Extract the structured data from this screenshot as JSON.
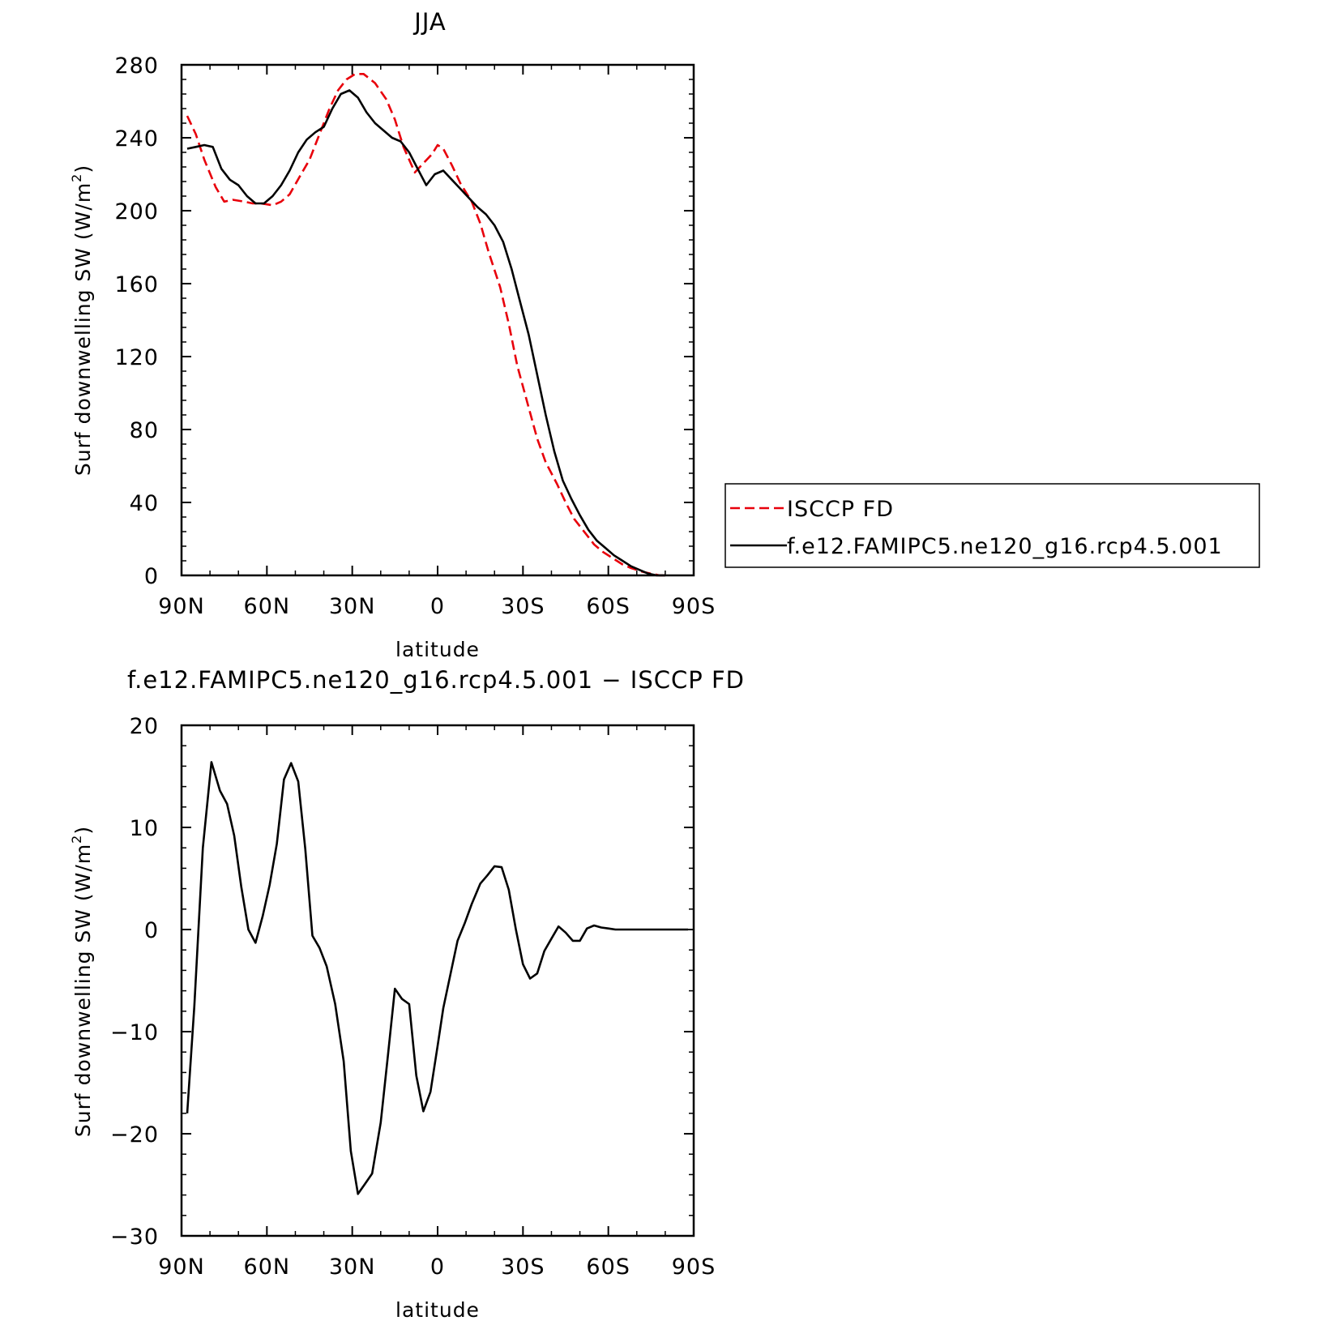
{
  "chart_data": [
    {
      "type": "line",
      "title": "JJA",
      "xlabel": "latitude",
      "ylabel": "Surf downwelling SW (W/m²)",
      "ylabel_main": "Surf downwelling SW (W/m",
      "ylabel_sup": "2",
      "ylabel_close": ")",
      "xlim": [
        90,
        -90
      ],
      "ylim": [
        0,
        280
      ],
      "x_tick_values": [
        90,
        60,
        30,
        0,
        -30,
        -60,
        -90
      ],
      "x_tick_labels": [
        "90N",
        "60N",
        "30N",
        "0",
        "30S",
        "60S",
        "90S"
      ],
      "y_tick_values": [
        0,
        40,
        80,
        120,
        160,
        200,
        240,
        280
      ],
      "y_tick_labels": [
        "0",
        "40",
        "80",
        "120",
        "160",
        "200",
        "240",
        "280"
      ],
      "grid": false,
      "legend": "outside-right",
      "series": [
        {
          "name": "ISCCP FD",
          "color": "#e8000b",
          "style": "dashed",
          "x": [
            88,
            85,
            82,
            78,
            75,
            72,
            68,
            65,
            62,
            58,
            55,
            52,
            48,
            45,
            42,
            38,
            35,
            32,
            29,
            26,
            22,
            18,
            15,
            12,
            8,
            5,
            2,
            0,
            -2,
            -5,
            -8,
            -12,
            -15,
            -18,
            -22,
            -25,
            -28,
            -32,
            -35,
            -38,
            -42,
            -45,
            -48,
            -52,
            -55,
            -58,
            -62,
            -65,
            -68,
            -72,
            -75,
            -78,
            -80
          ],
          "y": [
            252,
            242,
            228,
            213,
            205,
            206,
            205,
            204,
            204,
            203,
            205,
            209,
            220,
            228,
            240,
            256,
            266,
            272,
            275,
            275,
            270,
            261,
            250,
            235,
            221,
            226,
            231,
            236,
            234,
            225,
            215,
            205,
            193,
            177,
            158,
            138,
            115,
            92,
            75,
            62,
            50,
            40,
            31,
            23,
            17,
            13,
            9,
            6,
            4,
            2,
            1,
            0,
            0
          ]
        },
        {
          "name": "f.e12.FAMIPC5.ne120_g16.rcp4.5.001",
          "color": "#000000",
          "style": "solid",
          "x": [
            88,
            85,
            82,
            79,
            76,
            73,
            70,
            67,
            64,
            61,
            58,
            55,
            52,
            49,
            46,
            43,
            40,
            37,
            34,
            31,
            28,
            25,
            22,
            19,
            16,
            13,
            10,
            7,
            4,
            1,
            -2,
            -5,
            -8,
            -11,
            -14,
            -17,
            -20,
            -23,
            -26,
            -29,
            -32,
            -35,
            -38,
            -41,
            -44,
            -47,
            -50,
            -53,
            -56,
            -59,
            -62,
            -65,
            -68,
            -71,
            -74,
            -77,
            -80
          ],
          "y": [
            234,
            235,
            236,
            235,
            223,
            217,
            214,
            208,
            204,
            204,
            208,
            214,
            222,
            232,
            239,
            243,
            246,
            256,
            264,
            266,
            262,
            254,
            248,
            244,
            240,
            238,
            232,
            223,
            214,
            220,
            222,
            217,
            212,
            207,
            202,
            198,
            192,
            183,
            168,
            150,
            132,
            110,
            88,
            68,
            52,
            42,
            33,
            25,
            19,
            15,
            11,
            8,
            5,
            3,
            1,
            0,
            0
          ]
        }
      ]
    },
    {
      "type": "line",
      "title": "f.e12.FAMIPC5.ne120_g16.rcp4.5.001 − ISCCP FD",
      "xlabel": "latitude",
      "ylabel": "Surf downwelling SW (W/m²)",
      "ylabel_main": "Surf downwelling SW (W/m",
      "ylabel_sup": "2",
      "ylabel_close": ")",
      "xlim": [
        90,
        -90
      ],
      "ylim": [
        -30,
        20
      ],
      "x_tick_values": [
        90,
        60,
        30,
        0,
        -30,
        -60,
        -90
      ],
      "x_tick_labels": [
        "90N",
        "60N",
        "30N",
        "0",
        "30S",
        "60S",
        "90S"
      ],
      "y_tick_values": [
        -30,
        -20,
        -10,
        0,
        10,
        20
      ],
      "y_tick_labels": [
        "−30",
        "−20",
        "−10",
        "0",
        "10",
        "20"
      ],
      "grid": false,
      "series": [
        {
          "color": "#000000",
          "style": "solid",
          "x": [
            88,
            85.5,
            82.5,
            79.5,
            76.5,
            74,
            71.5,
            69,
            66.5,
            64,
            61.5,
            59,
            56.5,
            54,
            51.5,
            49,
            46.5,
            44,
            41.5,
            39,
            36,
            33,
            30.5,
            28,
            25.5,
            23,
            20,
            17.5,
            15,
            12.5,
            10,
            7.5,
            5,
            2.5,
            0,
            -2,
            -4.5,
            -7,
            -9.5,
            -12,
            -15,
            -17.5,
            -20,
            -22.5,
            -25,
            -27.5,
            -30,
            -32.5,
            -35,
            -37.5,
            -40,
            -42.5,
            -45,
            -47.5,
            -50,
            -52.5,
            -55,
            -57.5,
            -60,
            -62.5,
            -65,
            -67.5,
            -70,
            -72.5,
            -75,
            -77.5,
            -80,
            -82.5,
            -85,
            -88
          ],
          "y": [
            -18,
            -7.5,
            8,
            16.4,
            13.6,
            12.3,
            9.2,
            4.2,
            0,
            -1.3,
            1.3,
            4.4,
            8.4,
            14.7,
            16.3,
            14.5,
            7.9,
            -0.6,
            -1.8,
            -3.6,
            -7.3,
            -12.9,
            -21.7,
            -25.9,
            -24.9,
            -23.9,
            -18.9,
            -12.4,
            -5.8,
            -6.8,
            -7.3,
            -14.3,
            -17.8,
            -15.9,
            -11.4,
            -7.7,
            -4.4,
            -1.1,
            0.6,
            2.5,
            4.5,
            5.3,
            6.2,
            6.1,
            3.9,
            0,
            -3.4,
            -4.8,
            -4.3,
            -2.1,
            -0.9,
            0.3,
            -0.3,
            -1.1,
            -1.1,
            0.1,
            0.4,
            0.2,
            0.1,
            0,
            0,
            0,
            0,
            0,
            0,
            0,
            0,
            0,
            0,
            0
          ]
        }
      ]
    }
  ]
}
